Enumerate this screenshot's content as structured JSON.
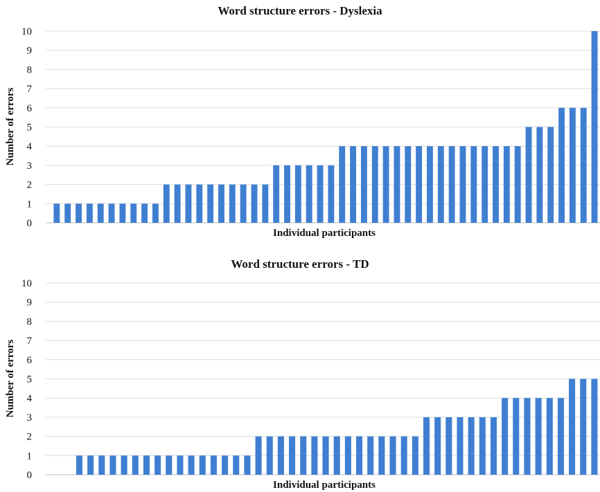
{
  "chart_data": [
    {
      "type": "bar",
      "title": "Word structure errors - Dyslexia",
      "xlabel": "Individual participants",
      "ylabel": "Number of errors",
      "ylim": [
        0,
        10
      ],
      "yticks": [
        0,
        1,
        2,
        3,
        4,
        5,
        6,
        7,
        8,
        9,
        10
      ],
      "grid": true,
      "color": "#3f7fd1",
      "values": [
        1,
        1,
        1,
        1,
        1,
        1,
        1,
        1,
        1,
        1,
        2,
        2,
        2,
        2,
        2,
        2,
        2,
        2,
        2,
        2,
        3,
        3,
        3,
        3,
        3,
        3,
        4,
        4,
        4,
        4,
        4,
        4,
        4,
        4,
        4,
        4,
        4,
        4,
        4,
        4,
        4,
        4,
        4,
        5,
        5,
        5,
        6,
        6,
        6,
        10
      ]
    },
    {
      "type": "bar",
      "title": "Word structure errors - TD",
      "xlabel": "Individual participants",
      "ylabel": "Number of errors",
      "ylim": [
        0,
        10
      ],
      "yticks": [
        0,
        1,
        2,
        3,
        4,
        5,
        6,
        7,
        8,
        9,
        10
      ],
      "grid": true,
      "color": "#3f7fd1",
      "values": [
        0,
        0,
        1,
        1,
        1,
        1,
        1,
        1,
        1,
        1,
        1,
        1,
        1,
        1,
        1,
        1,
        1,
        1,
        2,
        2,
        2,
        2,
        2,
        2,
        2,
        2,
        2,
        2,
        2,
        2,
        2,
        2,
        2,
        3,
        3,
        3,
        3,
        3,
        3,
        3,
        4,
        4,
        4,
        4,
        4,
        4,
        5,
        5,
        5
      ]
    }
  ]
}
